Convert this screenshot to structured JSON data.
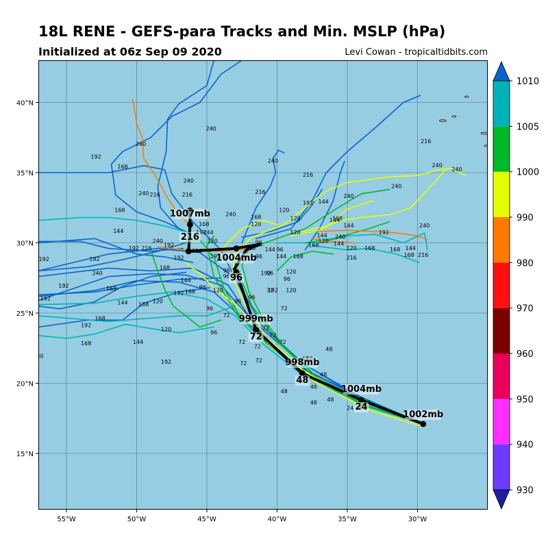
{
  "header": {
    "title": "18L RENE - GEFS-para Tracks and Min. MSLP (hPa)",
    "initialized": "Initialized at 06z Sep 09 2020",
    "credit": "Levi Cowan - tropicaltidbits.com"
  },
  "map": {
    "lon_range": [
      -57,
      -25
    ],
    "lat_range": [
      11,
      43
    ],
    "lon_ticks": [
      "55°W",
      "50°W",
      "45°W",
      "40°W",
      "35°W",
      "30°W"
    ],
    "lat_ticks": [
      "15°N",
      "20°N",
      "25°N",
      "30°N",
      "35°N",
      "40°N"
    ],
    "ocean_color": "#96cde3",
    "grid_color": "#4d6f7f"
  },
  "colorbar": {
    "labels": [
      "930",
      "940",
      "950",
      "960",
      "970",
      "980",
      "990",
      "1000",
      "1005",
      "1010"
    ],
    "colors": [
      "#1f1f9e",
      "#6b3cff",
      "#ff2dff",
      "#e8005a",
      "#7a0000",
      "#ff1010",
      "#ff7a00",
      "#e6ff00",
      "#00b82a",
      "#00b3b8",
      "#0a63c9"
    ]
  },
  "ensemble_mean": {
    "points": [
      {
        "lon": -29.6,
        "lat": 17.1,
        "label": "1002mb"
      },
      {
        "lon": -34.0,
        "lat": 18.8,
        "label": "1004mb",
        "hour": "24"
      },
      {
        "lon": -38.2,
        "lat": 20.7,
        "label": "998mb",
        "hour": "48"
      },
      {
        "lon": -41.5,
        "lat": 23.8,
        "label": "999mb",
        "hour": "72"
      },
      {
        "lon": -42.9,
        "lat": 27.9,
        "label": "1004mb",
        "hour": "96"
      },
      {
        "lon": -46.2,
        "lat": 31.3,
        "label": "1007mb",
        "hour": "216"
      }
    ]
  },
  "forecast_hours": [
    "24",
    "48",
    "72",
    "96",
    "120",
    "144",
    "168",
    "192",
    "216",
    "240"
  ]
}
